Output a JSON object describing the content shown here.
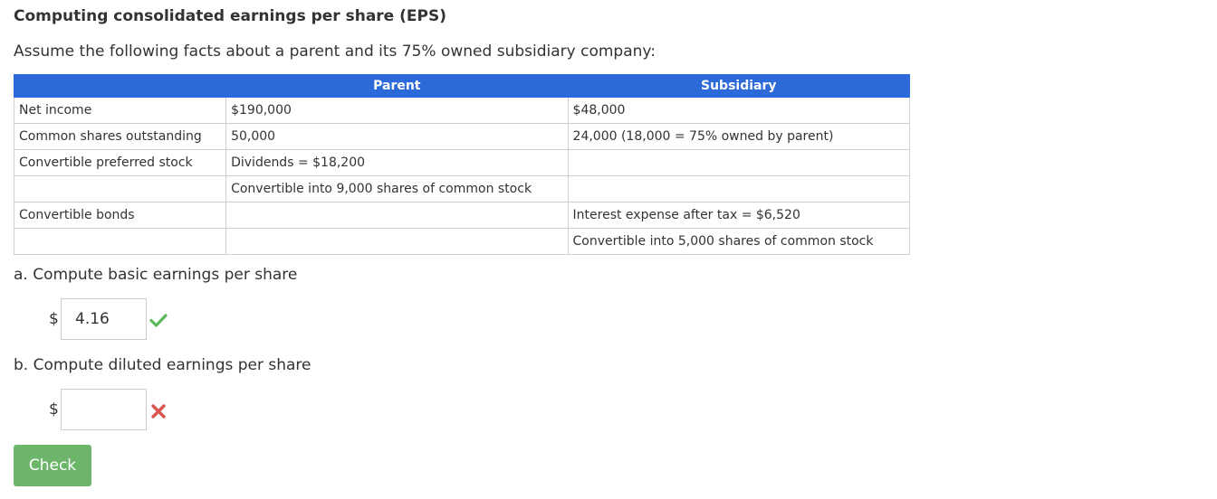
{
  "header": {
    "title": "Computing consolidated earnings per share (EPS)",
    "intro": "Assume the following facts about a parent and its 75% owned subsidiary company:"
  },
  "table": {
    "columns": [
      "",
      "Parent",
      "Subsidiary"
    ],
    "rows": [
      [
        "Net income",
        "$190,000",
        "$48,000"
      ],
      [
        "Common shares outstanding",
        "50,000",
        "24,000 (18,000 = 75% owned by parent)"
      ],
      [
        "Convertible preferred stock",
        "Dividends = $18,200",
        ""
      ],
      [
        "",
        "Convertible into 9,000 shares of common stock",
        ""
      ],
      [
        "Convertible bonds",
        "",
        "Interest expense after tax = $6,520"
      ],
      [
        "",
        "",
        "Convertible into 5,000 shares of common stock"
      ]
    ]
  },
  "questions": {
    "a": {
      "label": "a. Compute basic earnings per share",
      "currency": "$",
      "value": "4.16",
      "status": "correct",
      "status_icon": "checkmark-icon",
      "status_color": "#5cb85c"
    },
    "b": {
      "label": "b. Compute diluted earnings per share",
      "currency": "$",
      "value": "",
      "status": "incorrect",
      "status_icon": "x-mark-icon",
      "status_color": "#d9534f"
    }
  },
  "actions": {
    "check_label": "Check"
  },
  "colors": {
    "header_blue": "#2b6ad8",
    "button_green": "#6cb56b"
  }
}
